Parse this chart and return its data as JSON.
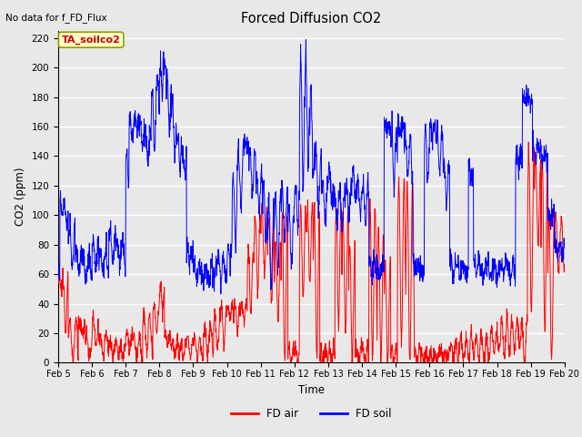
{
  "title": "Forced Diffusion CO2",
  "top_left_text": "No data for f_FD_Flux",
  "annotation_text": "TA_soilco2",
  "xlabel": "Time",
  "ylabel": "CO2 (ppm)",
  "ylim": [
    0,
    225
  ],
  "yticks": [
    0,
    20,
    40,
    60,
    80,
    100,
    120,
    140,
    160,
    180,
    200,
    220
  ],
  "background_color": "#e8e8e8",
  "axes_bg_color": "#e8e8e8",
  "grid_color": "#ffffff",
  "line_color_air": "#ff0000",
  "line_color_soil": "#0000ff",
  "legend_label_air": "FD air",
  "legend_label_soil": "FD soil",
  "x_start": 5.0,
  "x_end": 20.0,
  "x_ticks": [
    5,
    6,
    7,
    8,
    9,
    10,
    11,
    12,
    13,
    14,
    15,
    16,
    17,
    18,
    19,
    20
  ],
  "x_tick_labels": [
    "Feb 5",
    "Feb 6",
    "Feb 7",
    "Feb 8",
    "Feb 9",
    "Feb 10",
    "Feb 11",
    "Feb 12",
    "Feb 13",
    "Feb 14",
    "Feb 15",
    "Feb 16",
    "Feb 17",
    "Feb 18",
    "Feb 19",
    "Feb 20"
  ]
}
